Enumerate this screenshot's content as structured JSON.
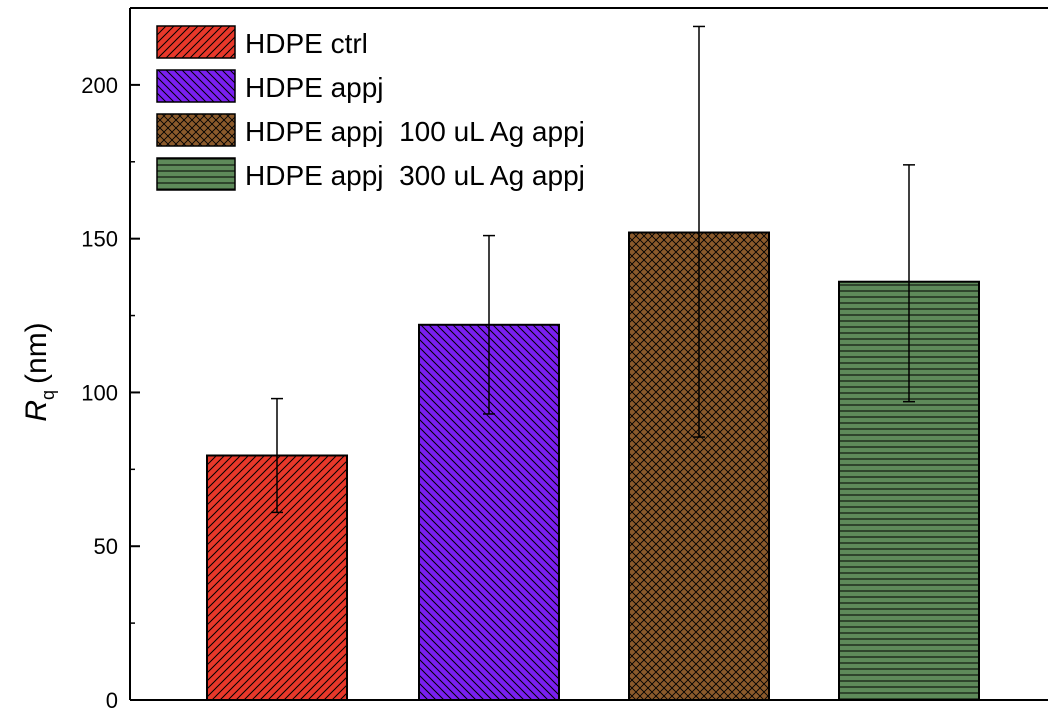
{
  "chart_data": {
    "type": "bar",
    "categories": [
      "HDPE ctrl",
      "HDPE appj",
      "HDPE appj  100 uL Ag appj",
      "HDPE appj  300 uL Ag appj"
    ],
    "values": [
      79.5,
      122,
      152,
      136
    ],
    "errors_upper": [
      98,
      151,
      219,
      174
    ],
    "errors_lower": [
      61,
      93,
      85.5,
      97
    ],
    "series": [
      {
        "name": "HDPE ctrl",
        "value": 79.5,
        "color": "#e8382a",
        "pattern": "diagonal-right"
      },
      {
        "name": "HDPE appj",
        "value": 122,
        "color": "#7a1ff0",
        "pattern": "diagonal-left"
      },
      {
        "name": "HDPE appj  100 uL Ag appj",
        "value": 152,
        "color": "#8b5a2b",
        "pattern": "crosshatch"
      },
      {
        "name": "HDPE appj  300 uL Ag appj",
        "value": 136,
        "color": "#5e8a5a",
        "pattern": "horizontal"
      }
    ],
    "ylabel_symbol": "R",
    "ylabel_subscript": "q",
    "ylabel_unit": "(nm)",
    "xlabel": "",
    "ylim": [
      0,
      225
    ],
    "yticks": [
      0,
      50,
      100,
      150,
      200
    ],
    "legend_position": "top-left",
    "grid": false
  }
}
